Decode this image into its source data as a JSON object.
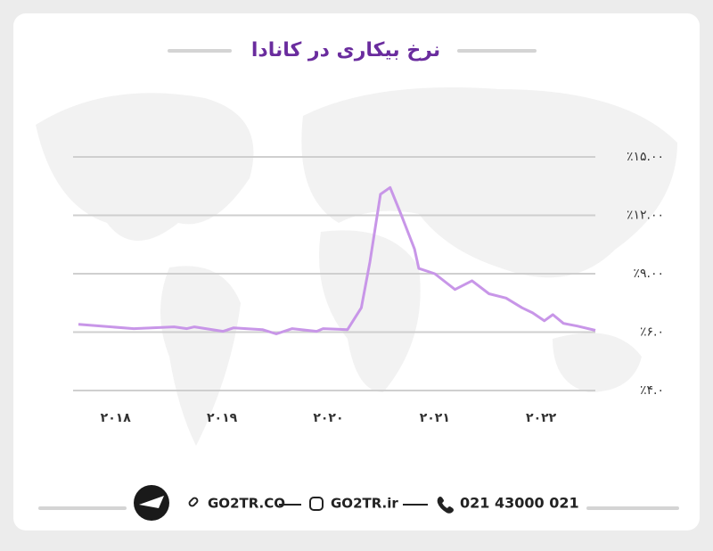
{
  "chart_data": {
    "type": "line",
    "title": "نرخ بیکاری در کانادا",
    "x": [
      2017.65,
      2018.17,
      2018.55,
      2018.67,
      2018.74,
      2019.01,
      2019.11,
      2019.38,
      2019.51,
      2019.66,
      2019.89,
      2019.95,
      2020.18,
      2020.31,
      2020.39,
      2020.49,
      2020.58,
      2020.68,
      2020.81,
      2020.85,
      2021.0,
      2021.19,
      2021.35,
      2021.51,
      2021.67,
      2021.82,
      2021.92,
      2022.03,
      2022.11,
      2022.21,
      2022.34,
      2022.51
    ],
    "values": [
      6.4,
      6.18,
      6.27,
      6.18,
      6.27,
      6.04,
      6.22,
      6.13,
      5.94,
      6.18,
      6.04,
      6.18,
      6.13,
      7.25,
      9.59,
      13.08,
      13.43,
      12.09,
      10.27,
      9.27,
      9.0,
      8.19,
      8.64,
      7.97,
      7.75,
      7.25,
      6.99,
      6.58,
      6.9,
      6.45,
      6.31,
      6.09
    ],
    "color": "#c896e8",
    "xlim": [
      2017.65,
      2022.51
    ],
    "xticks": [
      {
        "value": 2018,
        "label": "۲۰۱۸"
      },
      {
        "value": 2019,
        "label": "۲۰۱۹"
      },
      {
        "value": 2020,
        "label": "۲۰۲۰"
      },
      {
        "value": 2021,
        "label": "۲۰۲۱"
      },
      {
        "value": 2022,
        "label": "۲۰۲۲"
      }
    ],
    "ylim": [
      4,
      15
    ],
    "yticks": [
      {
        "value": 4,
        "label": "٪۴.۰"
      },
      {
        "value": 6,
        "label": "٪۶.۰"
      },
      {
        "value": 9,
        "label": "٪۹.۰۰"
      },
      {
        "value": 12,
        "label": "٪۱۲.۰۰"
      },
      {
        "value": 15,
        "label": "٪۱۵.۰۰"
      }
    ],
    "grid": true
  },
  "footer": {
    "website": "GO2TR.CO",
    "instagram": "GO2TR.ir",
    "phone": "021 43000 021"
  }
}
